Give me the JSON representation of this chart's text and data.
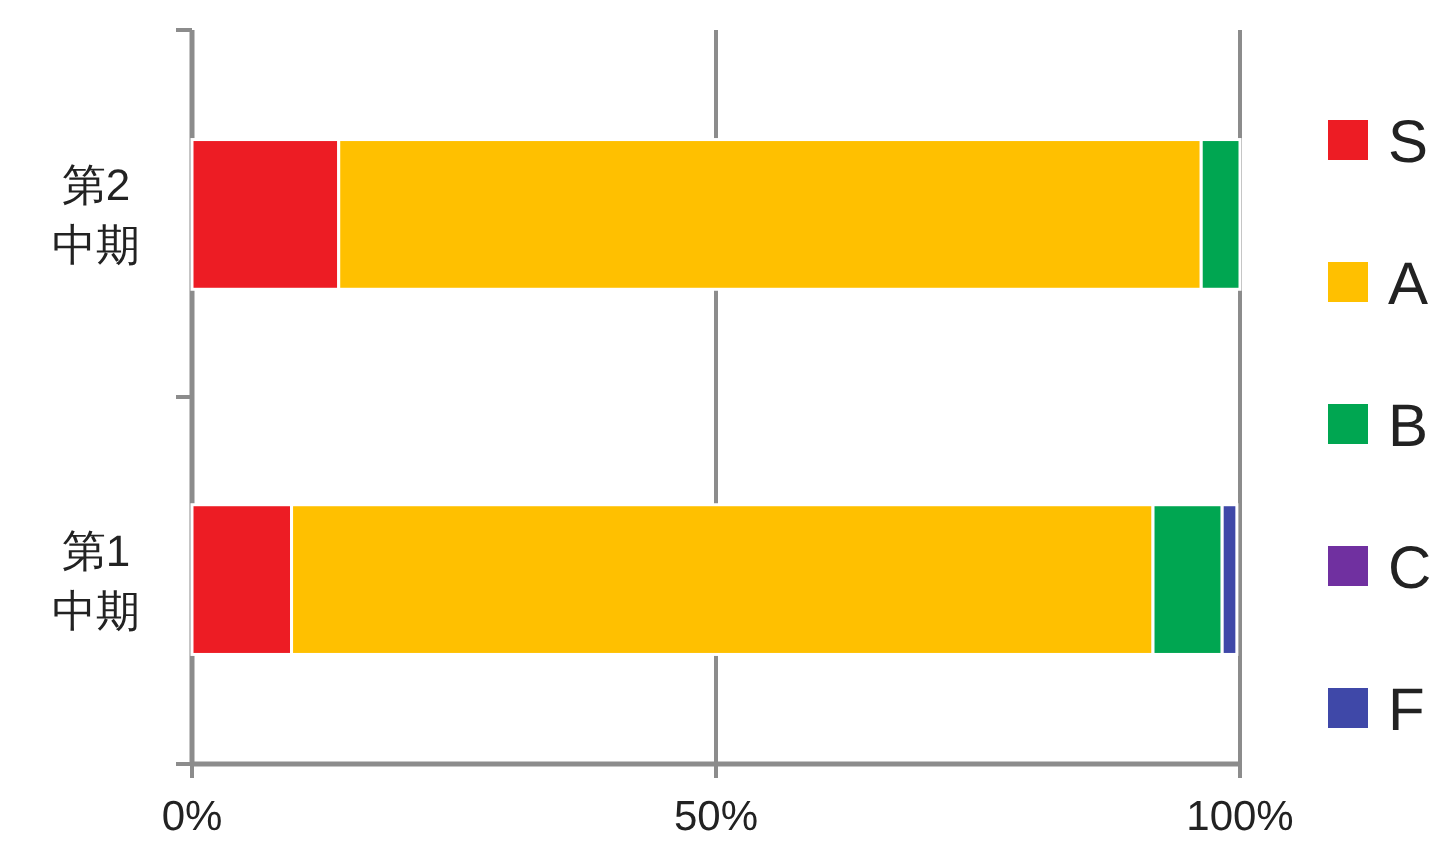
{
  "chart_data": {
    "type": "bar",
    "orientation": "horizontal",
    "stacked": true,
    "categories": [
      "第2\n中期",
      "第1\n中期"
    ],
    "series": [
      {
        "name": "S",
        "color": "#ed1c24",
        "values": [
          14.0,
          9.5
        ]
      },
      {
        "name": "A",
        "color": "#ffc000",
        "values": [
          82.3,
          82.2
        ]
      },
      {
        "name": "B",
        "color": "#00a651",
        "values": [
          3.7,
          6.6
        ]
      },
      {
        "name": "C",
        "color": "#7030a0",
        "values": [
          null,
          null
        ]
      },
      {
        "name": "F",
        "color": "#3f48a8",
        "values": [
          null,
          1.4
        ]
      }
    ],
    "xlim": [
      0,
      100
    ],
    "xticks": [
      {
        "value": 0,
        "label": "0%"
      },
      {
        "value": 50,
        "label": "50%"
      },
      {
        "value": 100,
        "label": "100%"
      }
    ],
    "grid": "x",
    "legend": "right"
  }
}
